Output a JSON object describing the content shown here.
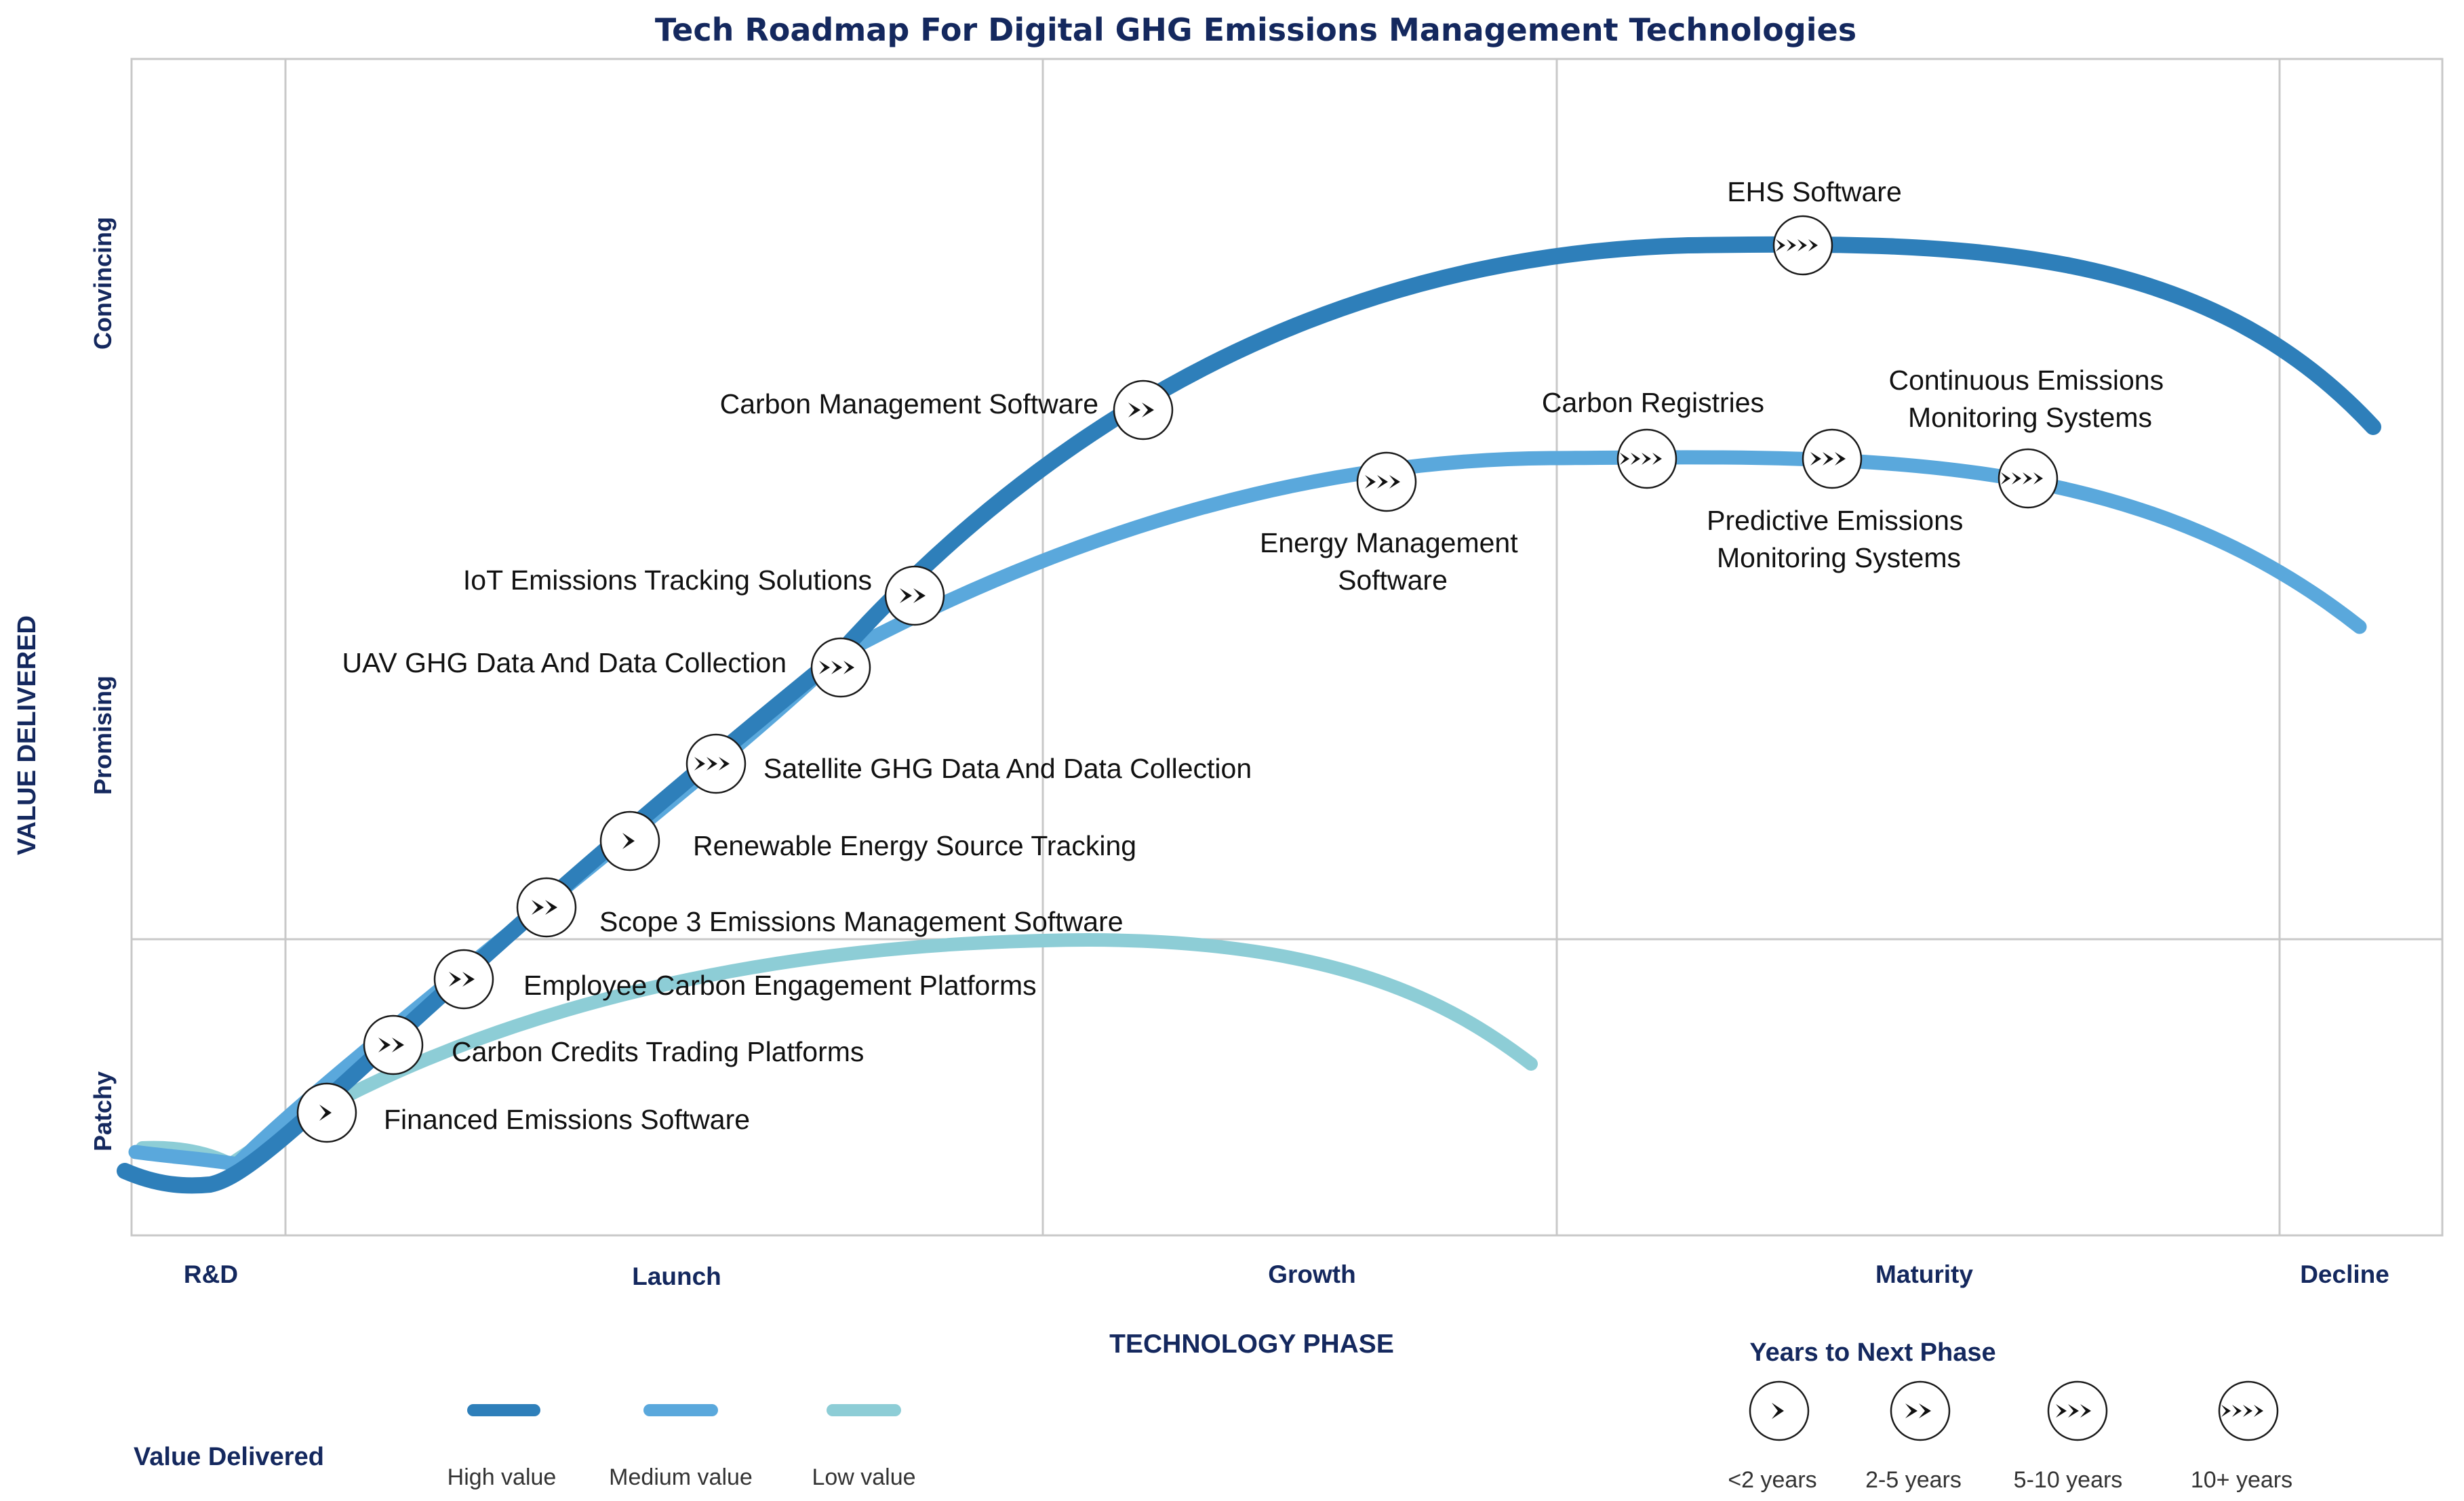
{
  "title": "Tech Roadmap For Digital GHG Emissions Management Technologies",
  "y_axis": {
    "label": "VALUE DELIVERED",
    "levels": [
      "Patchy",
      "Promising",
      "Convincing"
    ]
  },
  "x_axis": {
    "label": "TECHNOLOGY PHASE",
    "phases": [
      "R&D",
      "Launch",
      "Growth",
      "Maturity",
      "Decline"
    ]
  },
  "colors": {
    "high": "#2e7fba",
    "medium": "#5aa8dc",
    "low": "#8dcdd6",
    "title": "#14285e",
    "grid": "#c8c8c8"
  },
  "curves": [
    {
      "key": "low",
      "value": "Low value"
    },
    {
      "key": "medium",
      "value": "Medium value"
    },
    {
      "key": "high",
      "value": "High value"
    }
  ],
  "technologies": [
    {
      "name": "Financed Emissions Software",
      "years": "<2 years",
      "value": "high"
    },
    {
      "name": "Carbon Credits Trading Platforms",
      "years": "2-5 years",
      "value": "high"
    },
    {
      "name": "Employee Carbon Engagement Platforms",
      "years": "2-5 years",
      "value": "high"
    },
    {
      "name": "Scope 3 Emissions Management Software",
      "years": "2-5 years",
      "value": "high"
    },
    {
      "name": "Renewable Energy Source Tracking",
      "years": "<2 years",
      "value": "high"
    },
    {
      "name": "Satellite GHG Data And Data Collection",
      "years": "5-10 years",
      "value": "high"
    },
    {
      "name": "UAV GHG Data And Data Collection",
      "years": "5-10 years",
      "value": "high"
    },
    {
      "name": "IoT Emissions Tracking Solutions",
      "years": "2-5 years",
      "value": "high"
    },
    {
      "name": "Carbon Management Software",
      "years": "2-5 years",
      "value": "high"
    },
    {
      "name": "EHS Software",
      "years": "10+ years",
      "value": "high"
    },
    {
      "name": "Energy Management Software",
      "years": "5-10 years",
      "value": "medium"
    },
    {
      "name": "Carbon Registries",
      "years": "10+ years",
      "value": "medium"
    },
    {
      "name": "Predictive Emissions Monitoring Systems",
      "years": "5-10 years",
      "value": "medium"
    },
    {
      "name": "Continuous Emissions Monitoring Systems",
      "years": "10+ years",
      "value": "medium"
    }
  ],
  "legend_value": {
    "title": "Value Delivered",
    "items": [
      {
        "label": "High value",
        "color": "#2e7fba"
      },
      {
        "label": "Medium value",
        "color": "#5aa8dc"
      },
      {
        "label": "Low value",
        "color": "#8dcdd6"
      }
    ]
  },
  "legend_years": {
    "title": "Years to Next Phase",
    "items": [
      {
        "label": "<2 years",
        "chevrons": 1
      },
      {
        "label": "2-5 years",
        "chevrons": 2
      },
      {
        "label": "5-10 years",
        "chevrons": 3
      },
      {
        "label": "10+ years",
        "chevrons": 4
      }
    ]
  }
}
